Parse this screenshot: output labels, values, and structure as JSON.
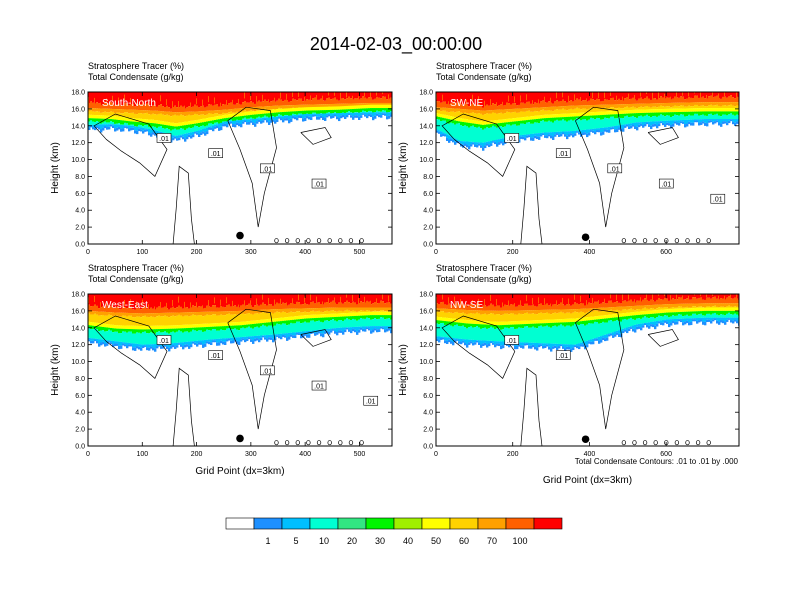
{
  "figure": {
    "title": "2014-02-03_00:00:00",
    "footnote": "Total Condensate Contours: .01 to .01 by .000"
  },
  "colorbar": {
    "labels": [
      "1",
      "5",
      "10",
      "20",
      "30",
      "40",
      "50",
      "60",
      "70",
      "100"
    ],
    "colors": [
      "#ffffff",
      "#1e90ff",
      "#00bfff",
      "#00ffd2",
      "#32e682",
      "#00f500",
      "#a0f000",
      "#ffff00",
      "#ffd200",
      "#ffa000",
      "#ff6000",
      "#ff0000"
    ]
  },
  "chart_data": [
    {
      "type": "heatmap",
      "panel": "South-North",
      "label1": "Stratosphere Tracer   (%)",
      "label2": "Total Condensate   (g/kg)",
      "ylabel": "Height (km)",
      "xlabel": "",
      "xlim": [
        0,
        560
      ],
      "ylim": [
        0,
        18
      ],
      "xticks": [
        0,
        100,
        200,
        300,
        400,
        500
      ],
      "yticks": [
        "0.0",
        "2.0",
        "4.0",
        "6.0",
        "8.0",
        "10.0",
        "12.0",
        "14.0",
        "16.0",
        "18.0"
      ],
      "contour_labels": [
        ".01",
        ".01",
        ".01",
        ".01"
      ],
      "marker_x": 280,
      "marker_y": 1.0,
      "tracer_profile": [
        [
          0,
          16.1,
          14.6,
          13.5
        ],
        [
          40,
          16.0,
          14.5,
          13.6
        ],
        [
          80,
          15.9,
          14.2,
          13.4
        ],
        [
          120,
          15.8,
          14.0,
          12.9
        ],
        [
          160,
          15.6,
          13.6,
          12.2
        ],
        [
          200,
          15.7,
          14.0,
          12.8
        ],
        [
          250,
          15.9,
          14.6,
          13.9
        ],
        [
          300,
          16.2,
          15.0,
          14.2
        ],
        [
          350,
          16.4,
          15.3,
          14.5
        ],
        [
          400,
          16.5,
          15.5,
          14.8
        ],
        [
          460,
          16.6,
          15.6,
          14.9
        ],
        [
          520,
          16.7,
          15.8,
          15.0
        ],
        [
          560,
          16.7,
          15.8,
          15.0
        ]
      ]
    },
    {
      "type": "heatmap",
      "panel": "SW-NE",
      "label1": "Stratosphere Tracer   (%)",
      "label2": "Total Condensate   (g/kg)",
      "ylabel": "Height (km)",
      "xlabel": "",
      "xlim": [
        0,
        790
      ],
      "ylim": [
        0,
        18
      ],
      "xticks": [
        0,
        200,
        400,
        600
      ],
      "yticks": [
        "0.0",
        "2.0",
        "4.0",
        "6.0",
        "8.0",
        "10.0",
        "12.0",
        "14.0",
        "16.0",
        "18.0"
      ],
      "contour_labels": [
        ".01",
        ".01",
        ".01",
        ".01",
        ".01"
      ],
      "marker_x": 390,
      "marker_y": 0.8,
      "tracer_profile": [
        [
          0,
          16.2,
          14.8,
          13.0
        ],
        [
          60,
          16.0,
          14.2,
          11.6
        ],
        [
          120,
          15.8,
          13.8,
          11.4
        ],
        [
          200,
          16.0,
          14.2,
          12.2
        ],
        [
          280,
          16.2,
          14.6,
          12.6
        ],
        [
          360,
          16.4,
          14.8,
          12.8
        ],
        [
          440,
          16.5,
          15.0,
          13.2
        ],
        [
          520,
          16.6,
          15.2,
          13.8
        ],
        [
          600,
          16.7,
          15.3,
          14.0
        ],
        [
          700,
          16.8,
          15.4,
          14.2
        ],
        [
          790,
          16.8,
          15.4,
          14.2
        ]
      ]
    },
    {
      "type": "heatmap",
      "panel": "West-East",
      "label1": "Stratosphere Tracer   (%)",
      "label2": "Total Condensate   (g/kg)",
      "ylabel": "Height (km)",
      "xlabel": "Grid Point (dx=3km)",
      "xlim": [
        0,
        560
      ],
      "ylim": [
        0,
        18
      ],
      "xticks": [
        0,
        100,
        200,
        300,
        400,
        500
      ],
      "yticks": [
        "0.0",
        "2.0",
        "4.0",
        "6.0",
        "8.0",
        "10.0",
        "12.0",
        "14.0",
        "16.0",
        "18.0"
      ],
      "contour_labels": [
        ".01",
        ".01",
        ".01",
        ".01",
        ".01"
      ],
      "marker_x": 280,
      "marker_y": 0.9,
      "tracer_profile": [
        [
          0,
          16.0,
          14.0,
          12.2
        ],
        [
          50,
          15.8,
          13.6,
          11.8
        ],
        [
          100,
          15.7,
          13.5,
          11.4
        ],
        [
          160,
          15.8,
          13.6,
          11.6
        ],
        [
          220,
          15.9,
          13.8,
          12.0
        ],
        [
          280,
          16.0,
          14.0,
          12.3
        ],
        [
          340,
          16.2,
          14.4,
          12.6
        ],
        [
          400,
          16.3,
          14.8,
          13.0
        ],
        [
          460,
          16.4,
          15.0,
          13.4
        ],
        [
          520,
          16.4,
          15.2,
          13.6
        ],
        [
          560,
          16.4,
          15.2,
          13.6
        ]
      ]
    },
    {
      "type": "heatmap",
      "panel": "NW-SE",
      "label1": "Stratosphere Tracer   (%)",
      "label2": "Total Condensate   (g/kg)",
      "ylabel": "Height (km)",
      "xlabel": "Grid Point (dx=3km)",
      "xlim": [
        0,
        790
      ],
      "ylim": [
        0,
        18
      ],
      "xticks": [
        0,
        200,
        400,
        600
      ],
      "yticks": [
        "0.0",
        "2.0",
        "4.0",
        "6.0",
        "8.0",
        "10.0",
        "12.0",
        "14.0",
        "16.0",
        "18.0"
      ],
      "contour_labels": [
        ".01",
        ".01"
      ],
      "marker_x": 390,
      "marker_y": 0.8,
      "tracer_profile": [
        [
          0,
          16.3,
          14.6,
          12.4
        ],
        [
          80,
          16.1,
          14.2,
          12.0
        ],
        [
          160,
          16.0,
          14.0,
          11.8
        ],
        [
          260,
          16.1,
          14.2,
          11.6
        ],
        [
          360,
          16.2,
          14.4,
          11.4
        ],
        [
          440,
          16.4,
          14.8,
          12.6
        ],
        [
          520,
          16.6,
          15.2,
          13.8
        ],
        [
          600,
          16.8,
          15.5,
          14.4
        ],
        [
          700,
          16.9,
          15.7,
          14.6
        ],
        [
          790,
          16.9,
          15.7,
          14.6
        ]
      ]
    }
  ]
}
